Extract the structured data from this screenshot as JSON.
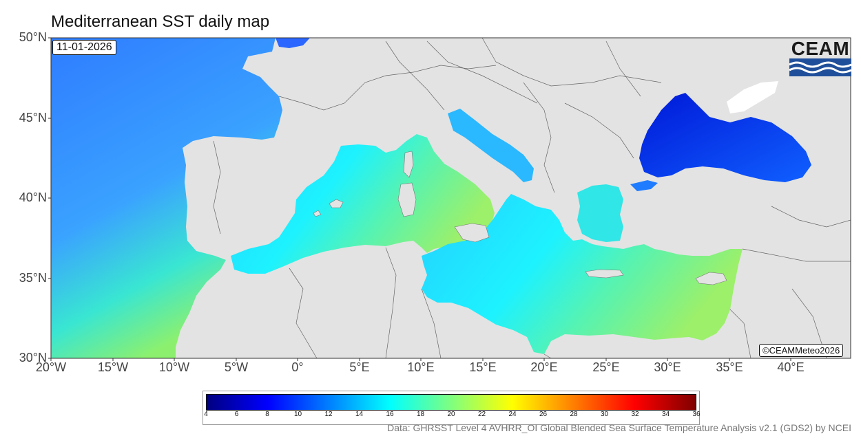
{
  "title": "Mediterranean SST daily map",
  "date": "11-01-2026",
  "logo_text": "CEAM",
  "credit": "©CEAMMeteo2026",
  "source": "Data: GHRSST Level 4 AVHRR_OI Global Blended Sea Surface Temperature Analysis v2.1 (GDS2) by NCEI",
  "lat_labels": [
    "50°N",
    "45°N",
    "40°N",
    "35°N",
    "30°N"
  ],
  "lon_labels": [
    "20°W",
    "15°W",
    "10°W",
    "5°W",
    "0°",
    "5°E",
    "10°E",
    "15°E",
    "20°E",
    "25°E",
    "30°E",
    "35°E",
    "40°E"
  ],
  "colorbar": {
    "ticks": [
      "4",
      "6",
      "8",
      "10",
      "12",
      "14",
      "16",
      "18",
      "20",
      "22",
      "24",
      "26",
      "28",
      "30",
      "32",
      "34",
      "36"
    ],
    "min": 4,
    "max": 36,
    "colors": [
      "#00007f",
      "#0000ff",
      "#007fff",
      "#00ffff",
      "#7fff7f",
      "#ffff00",
      "#ff7f00",
      "#ff0000",
      "#7f0000"
    ]
  },
  "colors": {
    "land": "#e3e3e3",
    "atlantic": "#3d8eff",
    "west_med": "#28dcff",
    "east_med": "#6cf29a",
    "black_sea": "#0a2ee6"
  }
}
